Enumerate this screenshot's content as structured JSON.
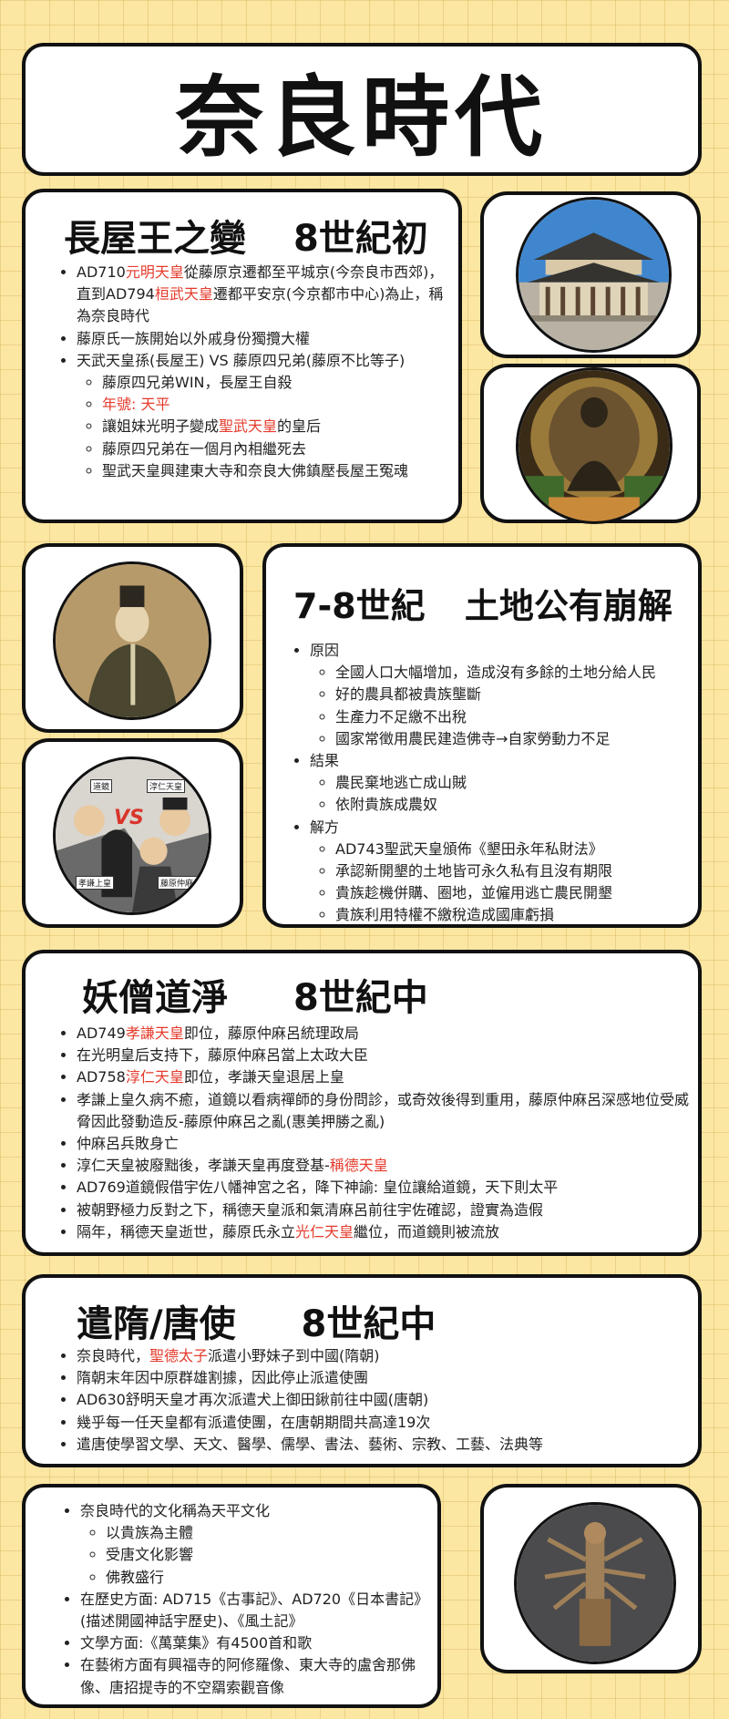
{
  "page_title": "奈良時代",
  "section1": {
    "title": "長屋王之變",
    "era": "8世紀初",
    "items": [
      {
        "parts": [
          "AD710",
          "元明天皇",
          "從藤原京遷都至平城京(今奈良市西郊)，直到AD794",
          "桓武天皇",
          "遷都平安京(今京都市中心)為止，稱為奈良時代"
        ]
      },
      {
        "text": "藤原氏一族開始以外戚身份獨攬大權"
      },
      {
        "text": "天武天皇孫(長屋王) VS 藤原四兄弟(藤原不比等子)"
      },
      {
        "sub": true,
        "text": "藤原四兄弟WIN，長屋王自殺"
      },
      {
        "sub": true,
        "text": "年號: 天平",
        "red": true
      },
      {
        "sub": true,
        "parts": [
          "讓姐妹光明子變成",
          "聖武天皇",
          "的皇后"
        ]
      },
      {
        "sub": true,
        "text": "藤原四兄弟在一個月內相繼死去"
      },
      {
        "sub": true,
        "text": "聖武天皇興建東大寺和奈良大佛鎮壓長屋王冤魂"
      }
    ]
  },
  "section2": {
    "title": "7-8世紀",
    "era": "土地公有崩解",
    "groups": [
      {
        "label": "原因",
        "items": [
          "全國人口大幅增加，造成沒有多餘的土地分給人民",
          "好的農具都被貴族壟斷",
          "生產力不足繳不出稅",
          "國家常徵用農民建造佛寺→自家勞動力不足"
        ]
      },
      {
        "label": "結果",
        "items": [
          "農民棄地逃亡成山賊",
          "依附貴族成農奴"
        ]
      },
      {
        "label": "解方",
        "items": [
          "AD743聖武天皇頒佈《墾田永年私財法》",
          "承認新開墾的土地皆可永久私有且沒有期限",
          "貴族趁機併購、圈地，並僱用逃亡農民開墾",
          "貴族利用特權不繳稅造成國庫虧損"
        ]
      }
    ]
  },
  "section3": {
    "title": "妖僧道淨",
    "era": "8世紀中",
    "items": [
      [
        "AD749",
        "孝謙天皇",
        "即位，藤原仲麻呂統理政局"
      ],
      [
        "在光明皇后支持下，藤原仲麻呂當上太政大臣"
      ],
      [
        "AD758",
        "淳仁天皇",
        "即位，孝謙天皇退居上皇"
      ],
      [
        "孝謙上皇久病不癒，道鏡以看病禪師的身份問診，或奇效後得到重用，藤原仲麻呂深感地位受威脅因此發動造反-藤原仲麻呂之亂(惠美押勝之亂)"
      ],
      [
        "仲麻呂兵敗身亡"
      ],
      [
        "淳仁天皇被廢黜後，孝謙天皇再度登基-",
        "稱德天皇",
        ""
      ],
      [
        "AD769道鏡假借宇佐八幡神宮之名，降下神諭: 皇位讓給道鏡，天下則太平"
      ],
      [
        "被朝野極力反對之下，稱德天皇派和氣清麻呂前往宇佐確認，證實為造假"
      ],
      [
        "隔年，稱德天皇逝世，藤原氏永立",
        "光仁天皇",
        "繼位，而道鏡則被流放"
      ]
    ]
  },
  "section4": {
    "title": "遣隋/唐使",
    "era": "8世紀中",
    "items": [
      [
        "奈良時代，",
        "聖德太子",
        "派遣小野妹子到中國(隋朝)"
      ],
      [
        "隋朝末年因中原群雄割據，因此停止派遣使團"
      ],
      [
        "AD630舒明天皇才再次派遣犬上御田鍬前往中國(唐朝)"
      ],
      [
        "幾乎每一任天皇都有派遣使團，在唐朝期間共高達19次"
      ],
      [
        "遣唐使學習文學、天文、醫學、儒學、書法、藝術、宗教、工藝、法典等"
      ]
    ]
  },
  "section5": {
    "items": [
      {
        "text": "奈良時代的文化稱為天平文化"
      },
      {
        "sub": true,
        "text": "以貴族為主體"
      },
      {
        "sub": true,
        "text": "受唐文化影響"
      },
      {
        "sub": true,
        "text": "佛教盛行"
      },
      {
        "text": "在歷史方面: AD715《古事記》、AD720《日本書記》(描述開國神話宇歷史)、《風土記》"
      },
      {
        "text": "文學方面:《萬葉集》有4500首和歌"
      },
      {
        "text": "在藝術方面有興福寺的阿修羅像、東大寺的盧舍那佛像、唐招提寺的不空羂索觀音像"
      }
    ]
  },
  "illustration_labels": {
    "a": "道鏡",
    "b": "淳仁天皇",
    "c": "孝謙上皇",
    "d": "藤原仲麻呂",
    "vs": "VS"
  },
  "colors": {
    "background": "#fbe6a2",
    "highlight": "#e53b2c",
    "border": "#111111"
  }
}
